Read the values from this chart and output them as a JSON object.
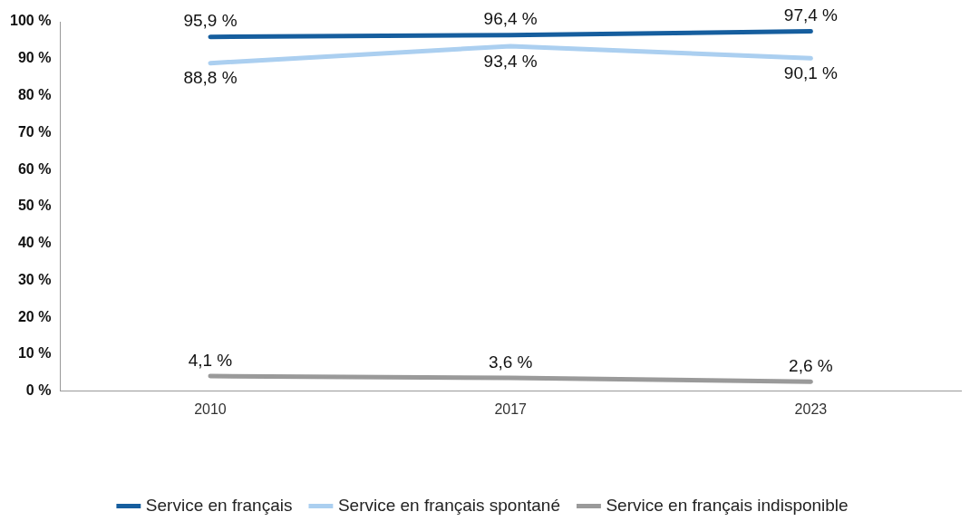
{
  "chart_data": {
    "type": "line",
    "categories": [
      "2010",
      "2017",
      "2023"
    ],
    "series": [
      {
        "name": "Service en français",
        "color": "#165e9e",
        "values": [
          95.9,
          96.4,
          97.4
        ],
        "value_labels": [
          "95,9 %",
          "96,4 %",
          "97,4 %"
        ]
      },
      {
        "name": "Service en français spontané",
        "color": "#abcff0",
        "values": [
          88.8,
          93.4,
          90.1
        ],
        "value_labels": [
          "88,8 %",
          "93,4 %",
          "90,1 %"
        ]
      },
      {
        "name": "Service en français indisponible",
        "color": "#9a9a9a",
        "values": [
          4.1,
          3.6,
          2.6
        ],
        "value_labels": [
          "4,1 %",
          "3,6 %",
          "2,6 %"
        ]
      }
    ],
    "ylim": [
      0,
      100
    ],
    "yticks": [
      {
        "value": 0,
        "label": "0 %"
      },
      {
        "value": 10,
        "label": "10 %"
      },
      {
        "value": 20,
        "label": "20 %"
      },
      {
        "value": 30,
        "label": "30 %"
      },
      {
        "value": 40,
        "label": "40 %"
      },
      {
        "value": 50,
        "label": "50 %"
      },
      {
        "value": 60,
        "label": "60 %"
      },
      {
        "value": 70,
        "label": "70 %"
      },
      {
        "value": 80,
        "label": "80 %"
      },
      {
        "value": 90,
        "label": "90 %"
      },
      {
        "value": 100,
        "label": "100 %"
      }
    ],
    "legend": "bottom",
    "marker": "none",
    "line_style": "solid"
  }
}
